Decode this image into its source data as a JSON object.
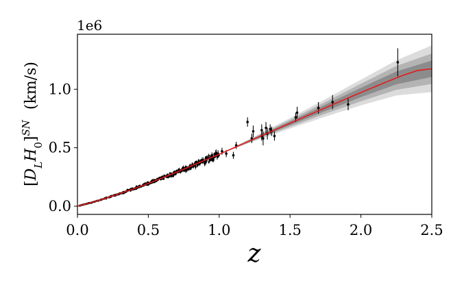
{
  "chart_data": {
    "type": "scatter",
    "title": "",
    "xlabel": "z",
    "ylabel_math": "[D_L H_0]^{SN}",
    "ylabel_unit": "(km/s)",
    "y_offset_label": "1e6",
    "xlim": [
      0.0,
      2.5
    ],
    "ylim": [
      -0.07,
      1.47
    ],
    "xticks": [
      0.0,
      0.5,
      1.0,
      1.5,
      2.0,
      2.5
    ],
    "xtick_labels": [
      "0.0",
      "0.5",
      "1.0",
      "1.5",
      "2.0",
      "2.5"
    ],
    "yticks": [
      0.0,
      0.5,
      1.0
    ],
    "ytick_labels": [
      "0.0",
      "0.5",
      "1.0"
    ],
    "grid": false,
    "colors": {
      "model_line": "#e41a1c",
      "points": "#000000",
      "band_outer": "#dcdcdc",
      "band_middle": "#b4b4b4",
      "band_inner": "#8c8c8c"
    },
    "model_curve": {
      "z": [
        0.0,
        0.1,
        0.2,
        0.3,
        0.4,
        0.5,
        0.6,
        0.7,
        0.8,
        0.9,
        1.0,
        1.1,
        1.2,
        1.3,
        1.4,
        1.5,
        1.6,
        1.7,
        1.8,
        1.9,
        2.0,
        2.1,
        2.2,
        2.3,
        2.4,
        2.5
      ],
      "y": [
        0.0,
        0.032,
        0.068,
        0.108,
        0.15,
        0.195,
        0.242,
        0.291,
        0.342,
        0.393,
        0.444,
        0.497,
        0.55,
        0.603,
        0.656,
        0.709,
        0.762,
        0.815,
        0.868,
        0.92,
        0.972,
        1.022,
        1.072,
        1.12,
        1.16,
        1.175
      ]
    },
    "uncertainty_bands": {
      "z": [
        1.0,
        1.25,
        1.5,
        1.75,
        2.0,
        2.25,
        2.5
      ],
      "center": [
        0.444,
        0.577,
        0.709,
        0.841,
        0.972,
        1.097,
        1.175
      ],
      "half_widths_1sigma": [
        0.0,
        0.008,
        0.016,
        0.027,
        0.04,
        0.055,
        0.07
      ],
      "half_widths_2sigma": [
        0.0,
        0.014,
        0.03,
        0.05,
        0.075,
        0.102,
        0.13
      ],
      "half_widths_3sigma": [
        0.0,
        0.02,
        0.045,
        0.075,
        0.11,
        0.15,
        0.2
      ]
    },
    "high_z_points": [
      {
        "x": 1.02,
        "y": 0.47,
        "err": 0.03
      },
      {
        "x": 1.05,
        "y": 0.45,
        "err": 0.03
      },
      {
        "x": 1.1,
        "y": 0.435,
        "err": 0.03
      },
      {
        "x": 1.12,
        "y": 0.52,
        "err": 0.03
      },
      {
        "x": 1.2,
        "y": 0.72,
        "err": 0.04
      },
      {
        "x": 1.23,
        "y": 0.58,
        "err": 0.04
      },
      {
        "x": 1.24,
        "y": 0.64,
        "err": 0.05
      },
      {
        "x": 1.3,
        "y": 0.6,
        "err": 0.04
      },
      {
        "x": 1.3,
        "y": 0.65,
        "err": 0.05
      },
      {
        "x": 1.31,
        "y": 0.58,
        "err": 0.06
      },
      {
        "x": 1.33,
        "y": 0.67,
        "err": 0.05
      },
      {
        "x": 1.34,
        "y": 0.62,
        "err": 0.05
      },
      {
        "x": 1.36,
        "y": 0.66,
        "err": 0.04
      },
      {
        "x": 1.37,
        "y": 0.64,
        "err": 0.04
      },
      {
        "x": 1.39,
        "y": 0.6,
        "err": 0.04
      },
      {
        "x": 1.54,
        "y": 0.76,
        "err": 0.04
      },
      {
        "x": 1.55,
        "y": 0.8,
        "err": 0.05
      },
      {
        "x": 1.7,
        "y": 0.84,
        "err": 0.05
      },
      {
        "x": 1.8,
        "y": 0.89,
        "err": 0.06
      },
      {
        "x": 1.91,
        "y": 0.87,
        "err": 0.05
      },
      {
        "x": 2.26,
        "y": 1.23,
        "err": 0.12
      }
    ],
    "low_z_cloud": {
      "z_range": [
        0.01,
        1.0
      ],
      "count": 400,
      "relative_scatter": 0.045,
      "relative_error": 0.04
    }
  }
}
